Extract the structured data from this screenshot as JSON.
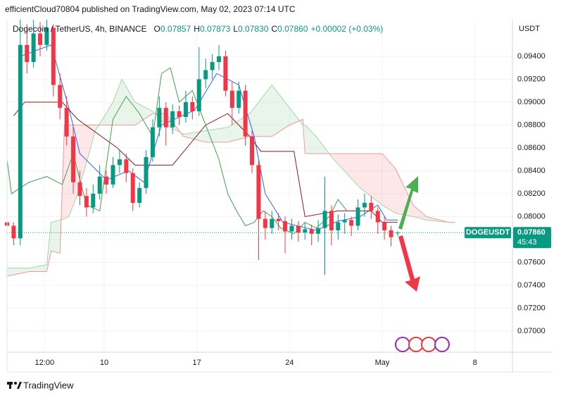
{
  "header": {
    "published": "efficientCloud70804 published on TradingView.com, May 02, 2023 07:14 UTC",
    "symbol": "Dogecoin / TetherUS, 4h, BINANCE",
    "ohlc": [
      [
        "O",
        "0.07857"
      ],
      [
        "H",
        "0.07873"
      ],
      [
        "L",
        "0.07830"
      ],
      [
        "C",
        "0.07860"
      ]
    ],
    "change": "+0.00002 (+0.03%)",
    "currency": "USDT"
  },
  "chart_data": {
    "type": "candlestick",
    "x": [
      0,
      3,
      6,
      9,
      12,
      15,
      18,
      21,
      24,
      27,
      30,
      33,
      36,
      39,
      42,
      45,
      48,
      51,
      54,
      57,
      60,
      63,
      66,
      69,
      72,
      75,
      78,
      81,
      84,
      87,
      90,
      93,
      96,
      99,
      102,
      105,
      108,
      111,
      114,
      117,
      120,
      123,
      126,
      129,
      132,
      135,
      138,
      141,
      144,
      147,
      150,
      153,
      156,
      159,
      162,
      165,
      168,
      171,
      174,
      177
    ],
    "ohlc": [
      [
        0.0795,
        0.08,
        0.0785,
        0.0792
      ],
      [
        0.0792,
        0.0795,
        0.0775,
        0.0781
      ],
      [
        0.0781,
        0.0972,
        0.0775,
        0.095
      ],
      [
        0.095,
        0.0968,
        0.0925,
        0.0935
      ],
      [
        0.0935,
        0.0972,
        0.093,
        0.096
      ],
      [
        0.096,
        0.097,
        0.094,
        0.095
      ],
      [
        0.095,
        0.0972,
        0.0945,
        0.0965
      ],
      [
        0.0965,
        0.0968,
        0.0905,
        0.0915
      ],
      [
        0.0915,
        0.0925,
        0.0885,
        0.0895
      ],
      [
        0.0895,
        0.0905,
        0.0862,
        0.087
      ],
      [
        0.087,
        0.088,
        0.082,
        0.083
      ],
      [
        0.083,
        0.084,
        0.081,
        0.0818
      ],
      [
        0.0818,
        0.0825,
        0.08,
        0.0808
      ],
      [
        0.0808,
        0.0828,
        0.0803,
        0.082
      ],
      [
        0.082,
        0.0845,
        0.0815,
        0.0835
      ],
      [
        0.0835,
        0.084,
        0.082,
        0.0828
      ],
      [
        0.0828,
        0.0852,
        0.0825,
        0.0845
      ],
      [
        0.0845,
        0.0858,
        0.0838,
        0.085
      ],
      [
        0.085,
        0.0855,
        0.083,
        0.0838
      ],
      [
        0.0838,
        0.0842,
        0.0805,
        0.0812
      ],
      [
        0.0812,
        0.083,
        0.0808,
        0.0825
      ],
      [
        0.0825,
        0.0858,
        0.082,
        0.0852
      ],
      [
        0.0852,
        0.0885,
        0.0848,
        0.0878
      ],
      [
        0.0878,
        0.0905,
        0.087,
        0.0895
      ],
      [
        0.0895,
        0.09,
        0.0862,
        0.0878
      ],
      [
        0.0878,
        0.0898,
        0.0872,
        0.0892
      ],
      [
        0.0892,
        0.0897,
        0.088,
        0.0887
      ],
      [
        0.0887,
        0.091,
        0.0882,
        0.09
      ],
      [
        0.09,
        0.0905,
        0.0885,
        0.0892
      ],
      [
        0.0892,
        0.0948,
        0.0888,
        0.092
      ],
      [
        0.092,
        0.0938,
        0.0912,
        0.0928
      ],
      [
        0.0928,
        0.0942,
        0.092,
        0.0935
      ],
      [
        0.0935,
        0.095,
        0.0928,
        0.094
      ],
      [
        0.094,
        0.0945,
        0.0905,
        0.091
      ],
      [
        0.091,
        0.0918,
        0.088,
        0.0895
      ],
      [
        0.0895,
        0.0918,
        0.089,
        0.091
      ],
      [
        0.091,
        0.0915,
        0.0862,
        0.087
      ],
      [
        0.087,
        0.0875,
        0.0838,
        0.0845
      ],
      [
        0.0845,
        0.085,
        0.0762,
        0.0798
      ],
      [
        0.0798,
        0.0805,
        0.078,
        0.079
      ],
      [
        0.079,
        0.0805,
        0.0785,
        0.0798
      ],
      [
        0.0798,
        0.0803,
        0.0788,
        0.0796
      ],
      [
        0.0796,
        0.08,
        0.0768,
        0.0787
      ],
      [
        0.0787,
        0.0798,
        0.078,
        0.0792
      ],
      [
        0.0792,
        0.0796,
        0.0778,
        0.0786
      ],
      [
        0.0786,
        0.0795,
        0.078,
        0.0789
      ],
      [
        0.0789,
        0.0793,
        0.0775,
        0.0785
      ],
      [
        0.0785,
        0.0797,
        0.0778,
        0.079
      ],
      [
        0.079,
        0.0835,
        0.0749,
        0.0805
      ],
      [
        0.0805,
        0.081,
        0.0775,
        0.0788
      ],
      [
        0.0788,
        0.0802,
        0.078,
        0.0795
      ],
      [
        0.0795,
        0.0803,
        0.0785,
        0.0797
      ],
      [
        0.0797,
        0.08,
        0.0783,
        0.0792
      ],
      [
        0.0792,
        0.0815,
        0.0788,
        0.0808
      ],
      [
        0.0808,
        0.082,
        0.08,
        0.0812
      ],
      [
        0.0812,
        0.0818,
        0.0798,
        0.0805
      ],
      [
        0.0805,
        0.0808,
        0.0785,
        0.0795
      ],
      [
        0.0795,
        0.08,
        0.078,
        0.0788
      ],
      [
        0.0788,
        0.0792,
        0.0774,
        0.0782
      ],
      [
        0.07857,
        0.07873,
        0.0783,
        0.0786
      ]
    ],
    "up_color": "#089981",
    "down_color": "#f23645",
    "xlim": [
      0,
      229
    ],
    "ylim": [
      0.06815,
      0.0972
    ],
    "xticks": [
      {
        "value": 17,
        "label": "12:00"
      },
      {
        "value": 44,
        "label": "10"
      },
      {
        "value": 86,
        "label": "17"
      },
      {
        "value": 128,
        "label": "24"
      },
      {
        "value": 170,
        "label": "May"
      },
      {
        "value": 212,
        "label": "8"
      }
    ],
    "yticks": [
      {
        "value": 0.07,
        "label": "0.07000"
      },
      {
        "value": 0.072,
        "label": "0.07200"
      },
      {
        "value": 0.074,
        "label": "0.07400"
      },
      {
        "value": 0.076,
        "label": "0.07600"
      },
      {
        "value": 0.078,
        "label": "0.07800"
      },
      {
        "value": 0.08,
        "label": "0.08000"
      },
      {
        "value": 0.082,
        "label": "0.08200"
      },
      {
        "value": 0.084,
        "label": "0.08400"
      },
      {
        "value": 0.086,
        "label": "0.08600"
      },
      {
        "value": 0.088,
        "label": "0.08800"
      },
      {
        "value": 0.09,
        "label": "0.09000"
      },
      {
        "value": 0.092,
        "label": "0.09200"
      },
      {
        "value": 0.094,
        "label": "0.09400"
      }
    ],
    "grid": true,
    "lines": [
      {
        "color": "#2962ff",
        "x": [
          6,
          20,
          28,
          33,
          45,
          55,
          62,
          70,
          85,
          95,
          105,
          112,
          117,
          125,
          140,
          150,
          160,
          168,
          172,
          177
        ],
        "values": [
          0.094,
          0.095,
          0.0895,
          0.0855,
          0.0832,
          0.084,
          0.083,
          0.088,
          0.0893,
          0.0925,
          0.0915,
          0.087,
          0.082,
          0.0795,
          0.0788,
          0.0796,
          0.08,
          0.081,
          0.0797,
          0.0797
        ]
      },
      {
        "color": "#8b1a1a",
        "x": [
          3,
          8,
          25,
          32,
          50,
          58,
          75,
          90,
          100,
          110,
          115,
          130,
          135,
          150,
          165,
          170,
          177
        ],
        "values": [
          0.0888,
          0.09,
          0.09,
          0.0885,
          0.086,
          0.0845,
          0.0845,
          0.088,
          0.089,
          0.087,
          0.0857,
          0.0857,
          0.08,
          0.0805,
          0.0805,
          0.0795,
          0.0795
        ]
      },
      {
        "color": "#43a047",
        "x": [
          0,
          2,
          10,
          18,
          25,
          30,
          36,
          42,
          48,
          54,
          60,
          66,
          70,
          74,
          78,
          84,
          88,
          92,
          96,
          100,
          104,
          108,
          112,
          116,
          120,
          124,
          130,
          135,
          140,
          146,
          150,
          154
        ],
        "values": [
          0.085,
          0.082,
          0.083,
          0.0835,
          0.0828,
          0.0855,
          0.081,
          0.0805,
          0.0885,
          0.0905,
          0.089,
          0.087,
          0.0925,
          0.093,
          0.09,
          0.091,
          0.089,
          0.087,
          0.085,
          0.082,
          0.0805,
          0.0792,
          0.0795,
          0.0805,
          0.08,
          0.079,
          0.0785,
          0.0795,
          0.079,
          0.08,
          0.0815,
          0.0805
        ]
      }
    ],
    "cloud": {
      "x": [
        0,
        10,
        18,
        20,
        24,
        26,
        28,
        32,
        40,
        48,
        52,
        58,
        66,
        72,
        80,
        90,
        100,
        110,
        120,
        128,
        134,
        135,
        140,
        148,
        160,
        170,
        176,
        184,
        190,
        200,
        203
      ],
      "span_a": {
        "color": "#a5d6a7",
        "values": [
          0.0755,
          0.0755,
          0.0758,
          0.0795,
          0.0797,
          0.0798,
          0.08,
          0.082,
          0.0875,
          0.09,
          0.092,
          0.09,
          0.0892,
          0.088,
          0.0872,
          0.0875,
          0.0878,
          0.089,
          0.0915,
          0.0895,
          0.088,
          0.088,
          0.087,
          0.085,
          0.0825,
          0.081,
          0.0803,
          0.08,
          0.0797,
          0.0795,
          0.0795
        ]
      },
      "span_b": {
        "color": "#ef9a9a",
        "values": [
          0.0748,
          0.0752,
          0.0752,
          0.077,
          0.0768,
          0.088,
          0.088,
          0.088,
          0.088,
          0.088,
          0.088,
          0.088,
          0.089,
          0.089,
          0.087,
          0.0865,
          0.0865,
          0.087,
          0.087,
          0.088,
          0.0885,
          0.0855,
          0.0855,
          0.0855,
          0.0855,
          0.0855,
          0.0842,
          0.081,
          0.08,
          0.0795,
          0.0795
        ]
      }
    },
    "last_price": {
      "symbol": "DOGEUSDT",
      "value": 0.0786,
      "label": "0.07860",
      "countdown": "45:43",
      "color": "#089981"
    }
  },
  "footer": {
    "brand": "TradingView"
  }
}
